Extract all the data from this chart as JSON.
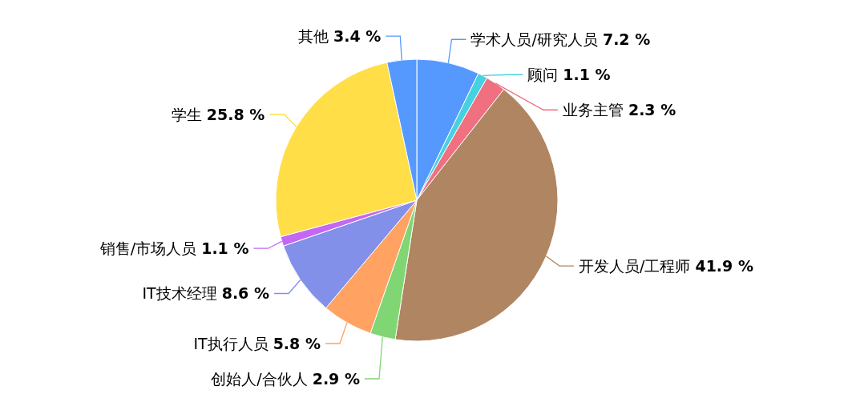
{
  "chart_data": {
    "type": "pie",
    "categories": [
      "学术人员/研究人员",
      "顾问",
      "业务主管",
      "开发人员/工程师",
      "创始人/合伙人",
      "IT执行人员",
      "IT技术经理",
      "销售/市场人员",
      "学生",
      "其他"
    ],
    "values": [
      7.2,
      1.1,
      2.3,
      41.9,
      2.9,
      5.8,
      8.6,
      1.1,
      25.8,
      3.4
    ],
    "value_labels": [
      "7.2 %",
      "1.1 %",
      "2.3 %",
      "41.9 %",
      "2.9 %",
      "5.8 %",
      "8.6 %",
      "1.1 %",
      "25.8 %",
      "3.4 %"
    ],
    "colors": [
      "#5599ff",
      "#44d2e0",
      "#f07080",
      "#b08562",
      "#80d672",
      "#ffa262",
      "#8290ea",
      "#c468f4",
      "#ffde48",
      "#5599ff"
    ]
  }
}
